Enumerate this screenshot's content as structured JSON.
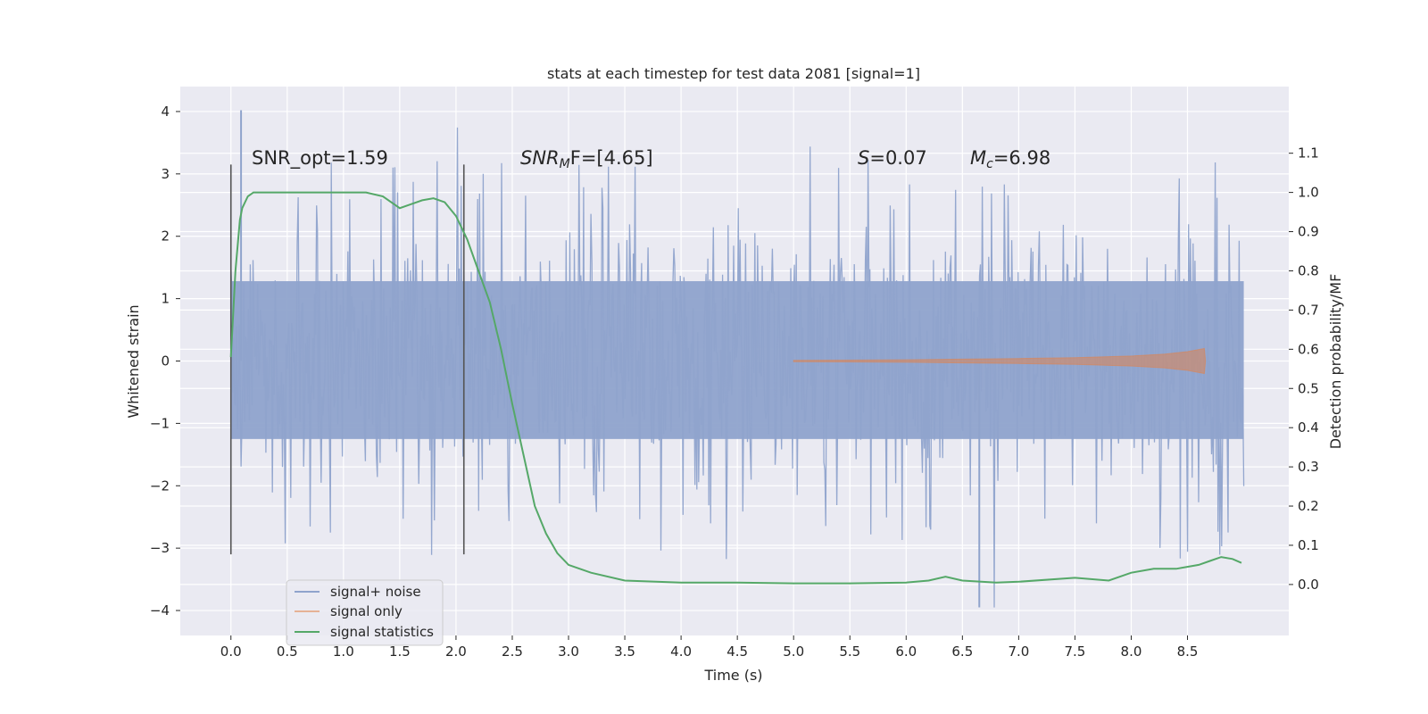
{
  "chart_data": {
    "type": "line",
    "title": "stats at each timestep for test data 2081 [signal=1]",
    "xlabel": "Time (s)",
    "ylabel_left": "Whitened strain",
    "ylabel_right": "Detection probability/MF",
    "xlim": [
      -0.45,
      9.4
    ],
    "ylim_left": [
      -4.4,
      4.4
    ],
    "ylim_right": [
      -0.13,
      1.27
    ],
    "x_ticks": [
      0.0,
      0.5,
      1.0,
      1.5,
      2.0,
      2.5,
      3.0,
      3.5,
      4.0,
      4.5,
      5.0,
      5.5,
      6.0,
      6.5,
      7.0,
      7.5,
      8.0,
      8.5
    ],
    "x_tick_labels": [
      "0.0",
      "0.5",
      "1.0",
      "1.5",
      "2.0",
      "2.5",
      "3.0",
      "3.5",
      "4.0",
      "4.5",
      "5.0",
      "5.5",
      "6.0",
      "6.5",
      "7.0",
      "7.5",
      "8.0",
      "8.5"
    ],
    "y_left_ticks": [
      4,
      3,
      2,
      1,
      0,
      -1,
      -2,
      -3,
      -4
    ],
    "y_left_tick_labels": [
      "4",
      "3",
      "2",
      "1",
      "0",
      "−1",
      "−2",
      "−3",
      "−4"
    ],
    "y_right_ticks": [
      1.1,
      1.0,
      0.9,
      0.8,
      0.7,
      0.6,
      0.5,
      0.4,
      0.3,
      0.2,
      0.1,
      0.0
    ],
    "y_right_tick_labels": [
      "1.1",
      "1.0",
      "0.9",
      "0.8",
      "0.7",
      "0.6",
      "0.5",
      "0.4",
      "0.3",
      "0.2",
      "0.1",
      "0.0"
    ],
    "grid": true,
    "annotations": {
      "snr_opt": "SNR_opt=1.59",
      "snr_mf_main": "SNR",
      "snr_mf_sub": "M",
      "snr_mf_tail": "F=[4.65]",
      "s_var": "S",
      "s_val": "=0.07",
      "mc_var": "M",
      "mc_sub": "c",
      "mc_val": "=6.98"
    },
    "vertical_markers": [
      0.0,
      2.07
    ],
    "noise_series": {
      "name": "signal+ noise",
      "color": "#8fa3cc",
      "x_range": [
        0.0,
        9.0
      ],
      "band_left": [
        -1.25,
        1.28
      ],
      "peak_max": 4.02,
      "peak_min": -3.95
    },
    "signal_series": {
      "name": "signal only",
      "color": "#dd8452",
      "x": [
        5.0,
        5.5,
        6.0,
        6.5,
        7.0,
        7.5,
        8.0,
        8.3,
        8.5,
        8.65,
        8.66
      ],
      "amplitude_left": [
        0.01,
        0.015,
        0.02,
        0.03,
        0.04,
        0.055,
        0.08,
        0.11,
        0.15,
        0.2,
        0.0
      ]
    },
    "statistics_series": {
      "name": "signal statistics",
      "color": "#55a868",
      "x": [
        0.0,
        0.04,
        0.08,
        0.1,
        0.15,
        0.2,
        0.4,
        0.8,
        1.0,
        1.2,
        1.35,
        1.5,
        1.6,
        1.7,
        1.8,
        1.9,
        2.0,
        2.1,
        2.2,
        2.3,
        2.4,
        2.5,
        2.6,
        2.7,
        2.8,
        2.9,
        3.0,
        3.2,
        3.5,
        4.0,
        4.5,
        5.0,
        5.5,
        6.0,
        6.2,
        6.35,
        6.5,
        6.8,
        7.0,
        7.5,
        7.8,
        8.0,
        8.2,
        8.4,
        8.6,
        8.7,
        8.8,
        8.9,
        8.98
      ],
      "y": [
        0.58,
        0.8,
        0.93,
        0.96,
        0.99,
        1.0,
        1.0,
        1.0,
        1.0,
        1.0,
        0.99,
        0.96,
        0.97,
        0.98,
        0.985,
        0.975,
        0.94,
        0.88,
        0.8,
        0.72,
        0.6,
        0.46,
        0.33,
        0.2,
        0.13,
        0.08,
        0.05,
        0.03,
        0.01,
        0.005,
        0.005,
        0.003,
        0.003,
        0.005,
        0.01,
        0.02,
        0.01,
        0.005,
        0.007,
        0.017,
        0.01,
        0.03,
        0.04,
        0.04,
        0.05,
        0.06,
        0.07,
        0.065,
        0.055
      ]
    },
    "legend": {
      "position": "lower-left",
      "items": [
        "signal+ noise",
        "signal only",
        "signal statistics"
      ]
    }
  }
}
